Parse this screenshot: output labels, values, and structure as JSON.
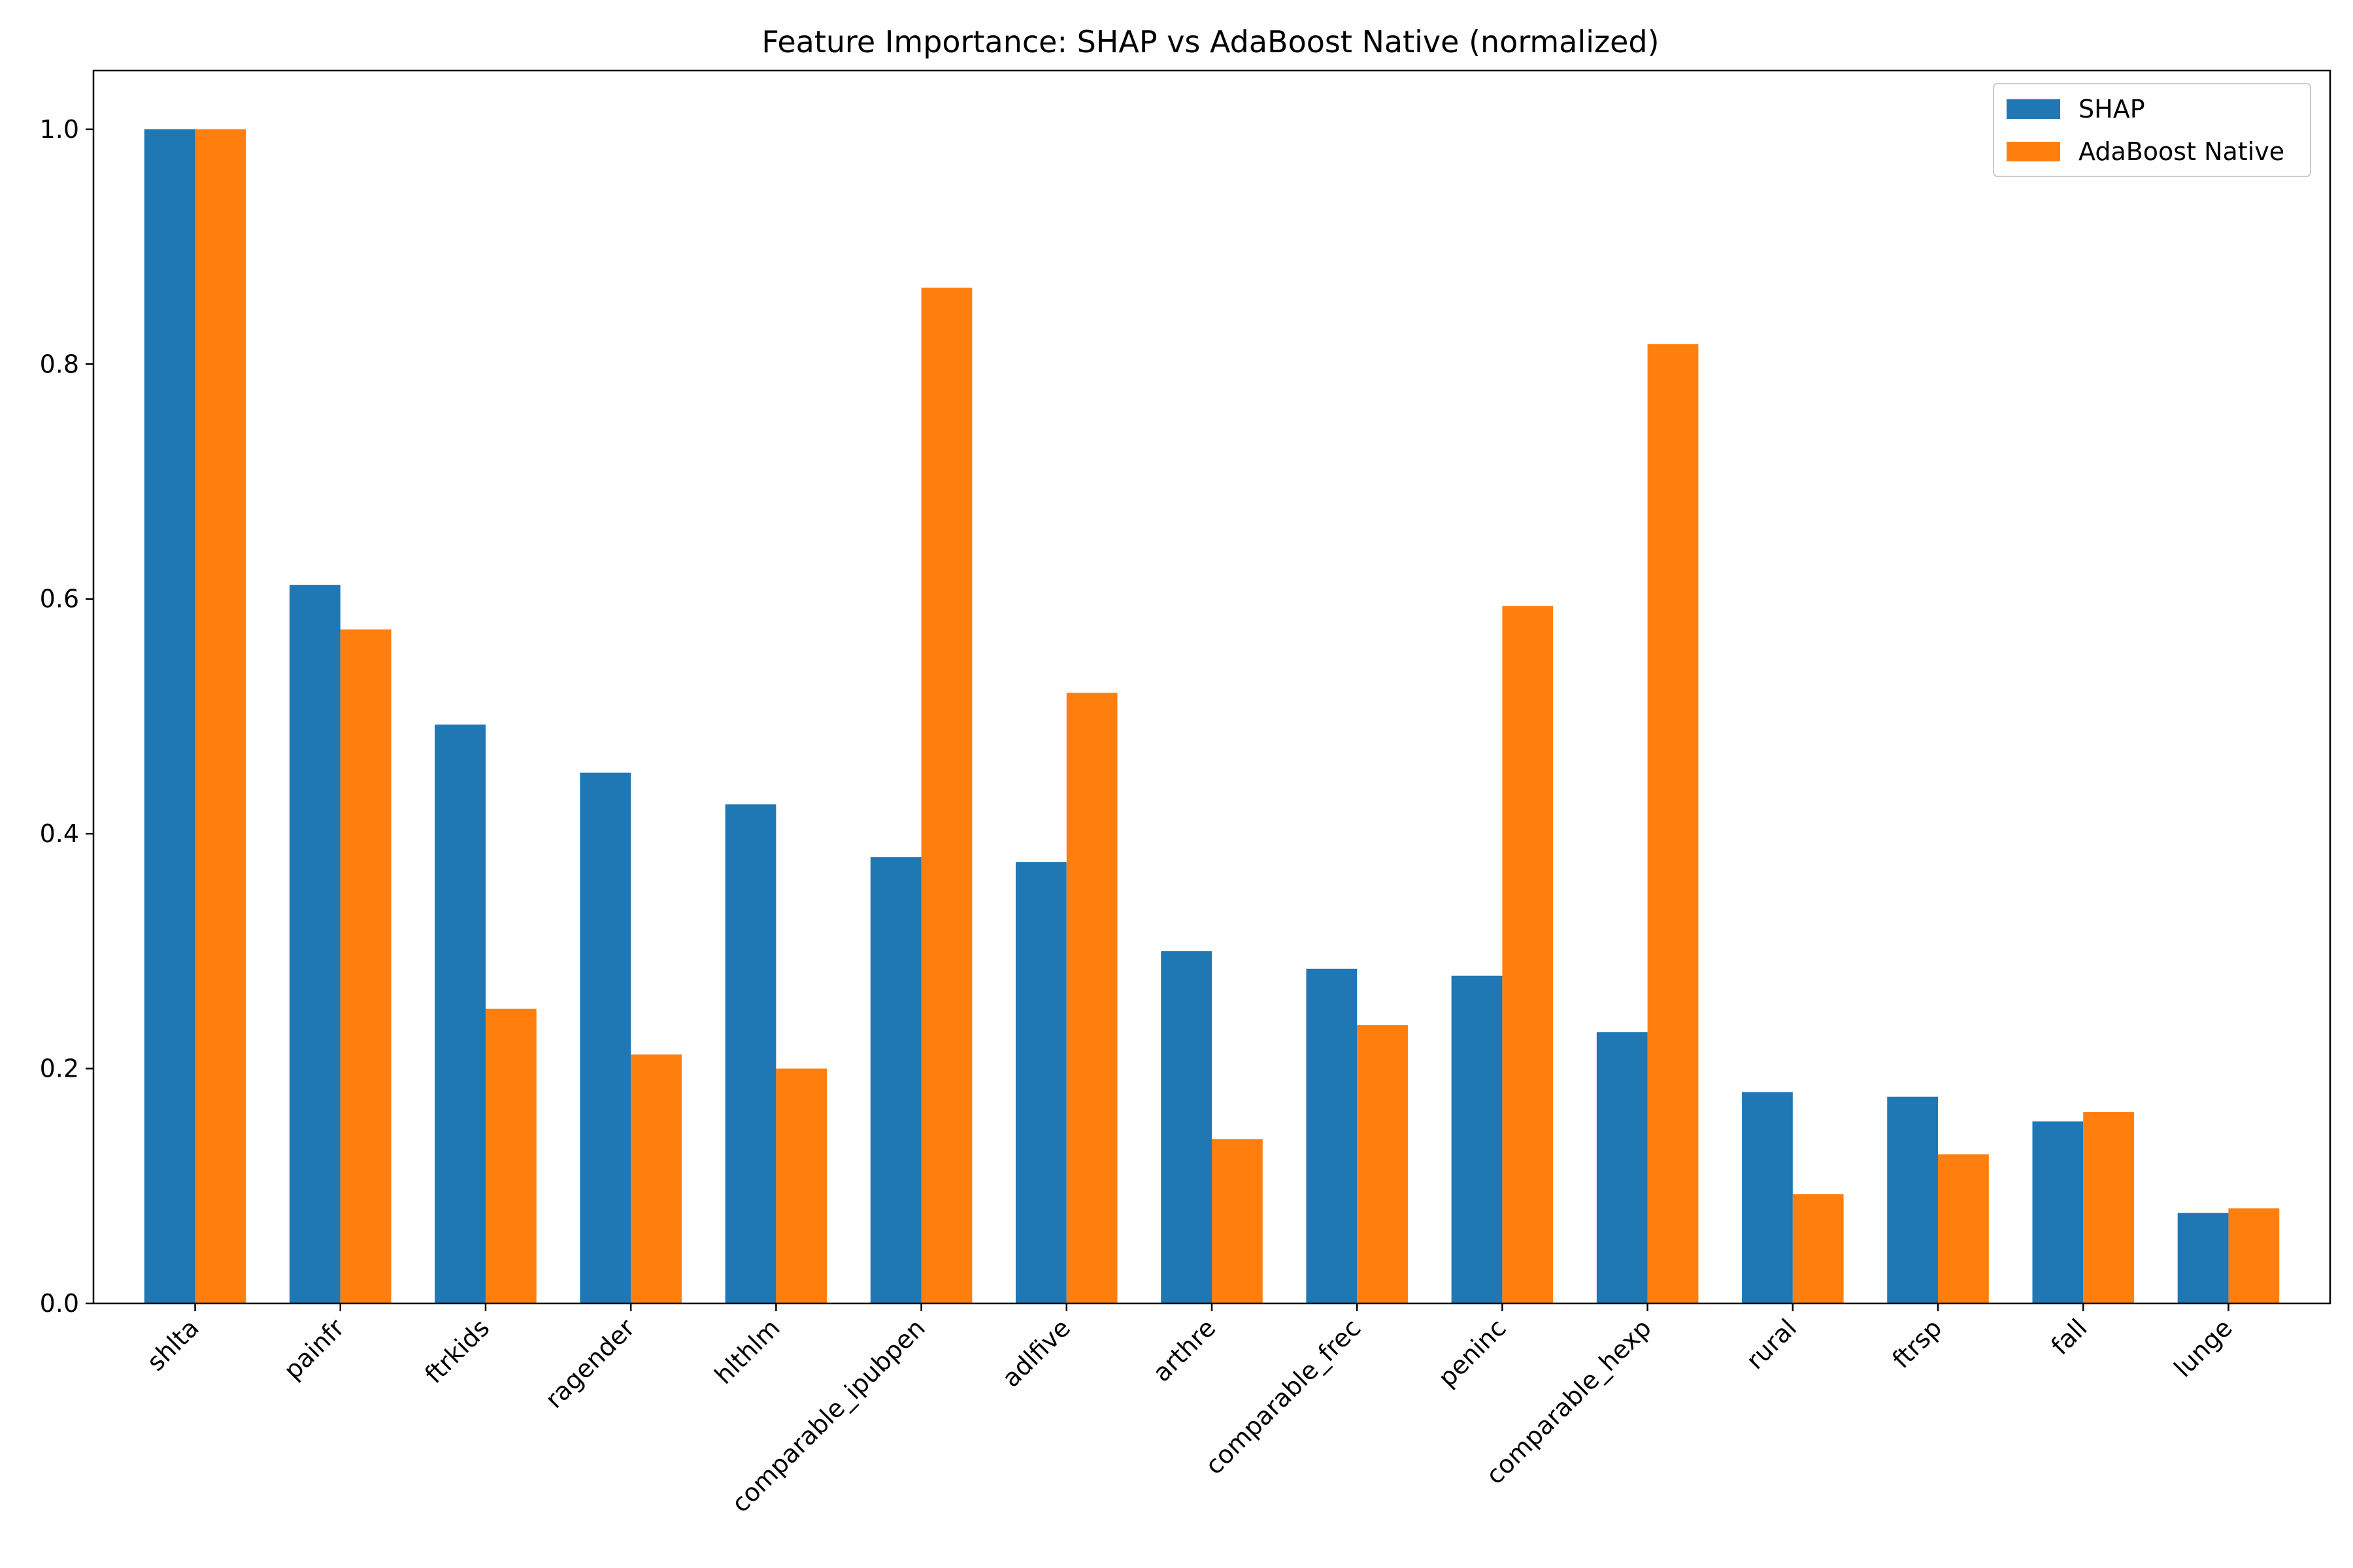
{
  "chart_data": {
    "type": "bar",
    "title": "Feature Importance: SHAP vs AdaBoost Native (normalized)",
    "xlabel": "",
    "ylabel": "",
    "categories": [
      "shlta",
      "painfr",
      "ftrkids",
      "ragender",
      "hlthlm",
      "comparable_ipubpen",
      "adlfive",
      "arthre",
      "comparable_frec",
      "peninc",
      "comparable_hexp",
      "rural",
      "ftrsp",
      "fall",
      "lunge"
    ],
    "series": [
      {
        "name": "SHAP",
        "color": "#1f77b4",
        "values": [
          1.0,
          0.612,
          0.493,
          0.452,
          0.425,
          0.38,
          0.376,
          0.3,
          0.285,
          0.279,
          0.231,
          0.18,
          0.176,
          0.155,
          0.077
        ]
      },
      {
        "name": "AdaBoost Native",
        "color": "#ff7f0e",
        "values": [
          1.0,
          0.574,
          0.251,
          0.212,
          0.2,
          0.865,
          0.52,
          0.14,
          0.237,
          0.594,
          0.817,
          0.093,
          0.127,
          0.163,
          0.081
        ]
      }
    ],
    "ylim": [
      0,
      1.05
    ],
    "yticks": [
      0.0,
      0.2,
      0.4,
      0.6,
      0.8,
      1.0
    ],
    "ytick_labels": [
      "0.0",
      "0.2",
      "0.4",
      "0.6",
      "0.8",
      "1.0"
    ],
    "grid": false,
    "legend_position": "top-right"
  }
}
